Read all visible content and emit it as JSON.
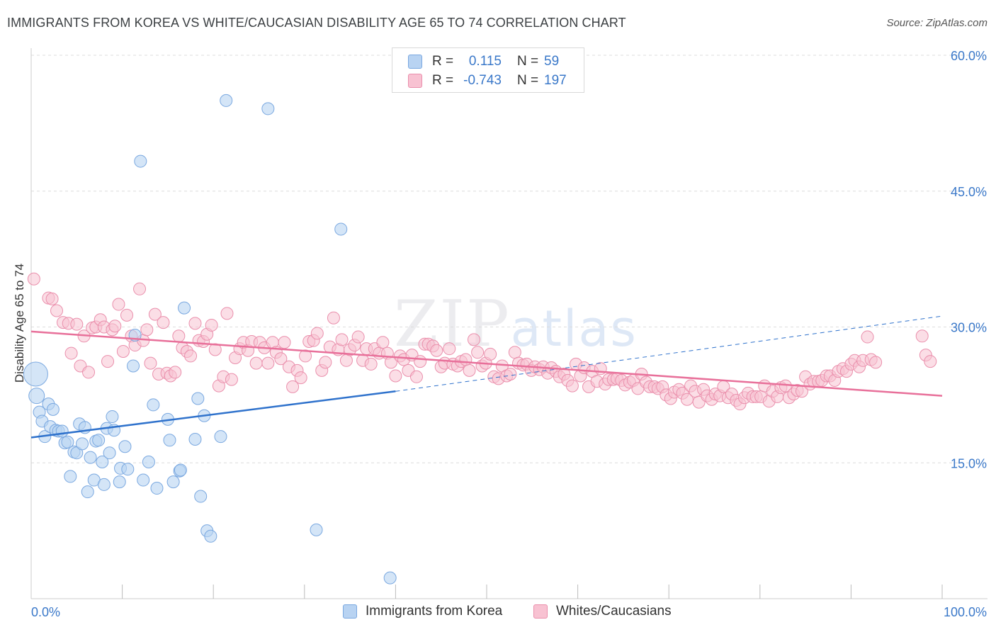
{
  "title": "IMMIGRANTS FROM KOREA VS WHITE/CAUCASIAN DISABILITY AGE 65 TO 74 CORRELATION CHART",
  "source": "Source: ZipAtlas.com",
  "watermark": {
    "zip": "ZIP",
    "atlas": "atlas"
  },
  "legend": {
    "r_label": "R =",
    "n_label": "N =",
    "rows": [
      {
        "r": "0.115",
        "n": "59",
        "color": "#a9c8ee"
      },
      {
        "r": "-0.743",
        "n": "197",
        "color": "#f6b8cb"
      }
    ]
  },
  "bottom_legend": [
    "Immigrants from Korea",
    "Whites/Caucasians"
  ],
  "colors": {
    "korea_fill": "#b8d3f2",
    "korea_stroke": "#7aa8e0",
    "korea_line": "#2f72cc",
    "white_fill": "#f8c2d2",
    "white_stroke": "#ea8fac",
    "white_line": "#e8709a",
    "tick": "#3a78c9",
    "grid": "#dcdcdc"
  },
  "chart_data": {
    "type": "scatter",
    "title": "IMMIGRANTS FROM KOREA VS WHITE/CAUCASIAN DISABILITY AGE 65 TO 74 CORRELATION CHART",
    "xlabel": "",
    "ylabel": "Disability Age 65 to 74",
    "xlim": [
      0,
      100
    ],
    "ylim": [
      0,
      60
    ],
    "x_tick_labels": [
      "0.0%",
      "100.0%"
    ],
    "y_ticks": [
      15,
      30,
      45,
      60
    ],
    "y_tick_labels": [
      "15.0%",
      "30.0%",
      "45.0%",
      "60.0%"
    ],
    "grid": true,
    "legend_placement": "top-center",
    "series": [
      {
        "name": "Immigrants from Korea",
        "r": 0.115,
        "n": 59,
        "trend": {
          "x0": 0,
          "y0": 17.8,
          "x1": 40,
          "y1": 22.9,
          "dashed_to_x": 100,
          "dashed_to_y": 31.2
        },
        "points": [
          [
            0.5,
            24.8
          ],
          [
            0.6,
            22.4
          ],
          [
            0.9,
            20.6
          ],
          [
            1.2,
            19.6
          ],
          [
            1.5,
            17.9
          ],
          [
            1.9,
            21.5
          ],
          [
            2.1,
            19.0
          ],
          [
            2.4,
            20.9
          ],
          [
            2.7,
            18.6
          ],
          [
            3.0,
            18.5
          ],
          [
            3.4,
            18.5
          ],
          [
            3.7,
            17.2
          ],
          [
            4.0,
            17.3
          ],
          [
            4.3,
            13.5
          ],
          [
            4.7,
            16.2
          ],
          [
            5.0,
            16.1
          ],
          [
            5.3,
            19.3
          ],
          [
            5.6,
            17.1
          ],
          [
            5.9,
            18.9
          ],
          [
            6.2,
            11.8
          ],
          [
            6.5,
            15.6
          ],
          [
            6.9,
            13.1
          ],
          [
            7.1,
            17.4
          ],
          [
            7.4,
            17.5
          ],
          [
            7.8,
            15.1
          ],
          [
            8.0,
            12.6
          ],
          [
            8.3,
            18.8
          ],
          [
            8.6,
            16.1
          ],
          [
            8.9,
            20.1
          ],
          [
            9.1,
            18.6
          ],
          [
            9.7,
            12.9
          ],
          [
            9.8,
            14.4
          ],
          [
            10.3,
            16.8
          ],
          [
            10.6,
            14.3
          ],
          [
            11.2,
            25.7
          ],
          [
            11.4,
            29.1
          ],
          [
            12.0,
            48.3
          ],
          [
            12.3,
            13.1
          ],
          [
            12.9,
            15.1
          ],
          [
            13.4,
            21.4
          ],
          [
            13.8,
            12.2
          ],
          [
            15.0,
            19.8
          ],
          [
            15.2,
            17.5
          ],
          [
            15.6,
            12.9
          ],
          [
            16.3,
            14.1
          ],
          [
            16.4,
            14.2
          ],
          [
            16.8,
            32.1
          ],
          [
            18.0,
            17.6
          ],
          [
            18.3,
            22.1
          ],
          [
            18.6,
            11.3
          ],
          [
            19.0,
            20.2
          ],
          [
            19.3,
            7.5
          ],
          [
            19.7,
            6.9
          ],
          [
            20.8,
            17.9
          ],
          [
            21.4,
            55.0
          ],
          [
            26.0,
            54.1
          ],
          [
            31.3,
            7.6
          ],
          [
            34.0,
            40.8
          ],
          [
            39.4,
            2.3
          ]
        ]
      },
      {
        "name": "Whites/Caucasians",
        "r": -0.743,
        "n": 197,
        "trend": {
          "x0": 0,
          "y0": 29.5,
          "x1": 100,
          "y1": 22.4
        },
        "points": [
          [
            0.3,
            35.3
          ],
          [
            1.9,
            33.2
          ],
          [
            2.3,
            33.1
          ],
          [
            2.8,
            31.8
          ],
          [
            3.5,
            30.5
          ],
          [
            4.1,
            30.4
          ],
          [
            4.4,
            27.1
          ],
          [
            5.0,
            30.3
          ],
          [
            5.4,
            25.7
          ],
          [
            5.8,
            29.0
          ],
          [
            6.3,
            25.0
          ],
          [
            6.7,
            29.9
          ],
          [
            7.1,
            30.0
          ],
          [
            7.6,
            30.8
          ],
          [
            8.0,
            30.0
          ],
          [
            8.4,
            26.2
          ],
          [
            8.9,
            29.7
          ],
          [
            9.2,
            30.1
          ],
          [
            9.6,
            32.5
          ],
          [
            10.1,
            27.3
          ],
          [
            10.5,
            31.3
          ],
          [
            11.0,
            29.0
          ],
          [
            11.4,
            28.0
          ],
          [
            11.9,
            34.2
          ],
          [
            12.3,
            28.5
          ],
          [
            12.7,
            29.7
          ],
          [
            13.1,
            26.0
          ],
          [
            13.6,
            31.4
          ],
          [
            14.0,
            24.8
          ],
          [
            14.5,
            30.5
          ],
          [
            14.9,
            24.9
          ],
          [
            15.3,
            24.6
          ],
          [
            15.8,
            25.0
          ],
          [
            16.2,
            29.0
          ],
          [
            16.6,
            27.7
          ],
          [
            17.1,
            27.3
          ],
          [
            17.5,
            26.8
          ],
          [
            18.0,
            30.4
          ],
          [
            18.4,
            28.5
          ],
          [
            18.9,
            28.4
          ],
          [
            19.3,
            29.2
          ],
          [
            19.8,
            30.2
          ],
          [
            20.2,
            27.5
          ],
          [
            20.6,
            23.5
          ],
          [
            21.1,
            24.5
          ],
          [
            21.5,
            31.5
          ],
          [
            22.0,
            24.2
          ],
          [
            22.4,
            26.6
          ],
          [
            22.9,
            27.6
          ],
          [
            23.3,
            28.3
          ],
          [
            23.8,
            27.4
          ],
          [
            24.2,
            28.4
          ],
          [
            24.7,
            26.0
          ],
          [
            25.1,
            28.3
          ],
          [
            25.6,
            27.7
          ],
          [
            26.0,
            26.0
          ],
          [
            26.5,
            28.3
          ],
          [
            26.9,
            27.2
          ],
          [
            27.4,
            26.5
          ],
          [
            27.8,
            28.3
          ],
          [
            28.3,
            25.6
          ],
          [
            28.7,
            23.4
          ],
          [
            29.2,
            25.2
          ],
          [
            29.6,
            24.4
          ],
          [
            30.1,
            26.8
          ],
          [
            30.5,
            28.4
          ],
          [
            31.0,
            28.5
          ],
          [
            31.4,
            29.3
          ],
          [
            31.9,
            25.2
          ],
          [
            32.3,
            26.1
          ],
          [
            32.8,
            27.8
          ],
          [
            33.2,
            31.0
          ],
          [
            33.7,
            27.5
          ],
          [
            34.1,
            28.6
          ],
          [
            34.6,
            26.3
          ],
          [
            35.0,
            27.5
          ],
          [
            35.5,
            28.0
          ],
          [
            35.9,
            28.9
          ],
          [
            36.4,
            26.3
          ],
          [
            36.8,
            27.6
          ],
          [
            37.3,
            25.9
          ],
          [
            37.7,
            27.6
          ],
          [
            38.2,
            27.1
          ],
          [
            38.6,
            28.3
          ],
          [
            39.1,
            27.1
          ],
          [
            39.5,
            26.1
          ],
          [
            40.0,
            24.6
          ],
          [
            40.5,
            26.8
          ],
          [
            40.9,
            26.4
          ],
          [
            41.4,
            25.2
          ],
          [
            41.8,
            26.9
          ],
          [
            42.3,
            24.5
          ],
          [
            42.7,
            26.2
          ],
          [
            43.2,
            28.1
          ],
          [
            43.6,
            28.1
          ],
          [
            44.1,
            27.9
          ],
          [
            44.5,
            27.4
          ],
          [
            45.0,
            25.6
          ],
          [
            45.4,
            26.0
          ],
          [
            45.9,
            27.6
          ],
          [
            46.3,
            25.9
          ],
          [
            46.8,
            25.7
          ],
          [
            47.2,
            26.2
          ],
          [
            47.7,
            26.4
          ],
          [
            48.1,
            25.2
          ],
          [
            48.6,
            28.6
          ],
          [
            49.0,
            27.2
          ],
          [
            49.5,
            25.7
          ],
          [
            49.9,
            26.0
          ],
          [
            50.4,
            27.0
          ],
          [
            50.8,
            24.5
          ],
          [
            51.3,
            24.3
          ],
          [
            51.7,
            25.7
          ],
          [
            52.2,
            24.6
          ],
          [
            52.6,
            24.8
          ],
          [
            53.1,
            27.2
          ],
          [
            53.5,
            26.0
          ],
          [
            54.0,
            25.8
          ],
          [
            54.4,
            25.9
          ],
          [
            54.9,
            25.2
          ],
          [
            55.3,
            25.6
          ],
          [
            55.8,
            25.3
          ],
          [
            56.2,
            25.6
          ],
          [
            56.7,
            24.9
          ],
          [
            57.1,
            25.5
          ],
          [
            57.6,
            25.1
          ],
          [
            58.0,
            24.5
          ],
          [
            58.5,
            24.8
          ],
          [
            58.9,
            24.1
          ],
          [
            59.4,
            23.5
          ],
          [
            59.8,
            25.9
          ],
          [
            60.3,
            24.6
          ],
          [
            60.7,
            25.5
          ],
          [
            61.2,
            23.4
          ],
          [
            61.6,
            25.1
          ],
          [
            62.1,
            24.0
          ],
          [
            62.5,
            25.4
          ],
          [
            63.0,
            23.7
          ],
          [
            63.4,
            24.2
          ],
          [
            63.9,
            24.2
          ],
          [
            64.3,
            24.3
          ],
          [
            64.8,
            24.1
          ],
          [
            65.2,
            23.6
          ],
          [
            65.7,
            23.9
          ],
          [
            66.1,
            24.1
          ],
          [
            66.6,
            23.2
          ],
          [
            67.0,
            24.8
          ],
          [
            67.5,
            23.9
          ],
          [
            67.9,
            23.4
          ],
          [
            68.4,
            23.4
          ],
          [
            68.8,
            23.2
          ],
          [
            69.3,
            23.4
          ],
          [
            69.7,
            22.5
          ],
          [
            70.2,
            22.1
          ],
          [
            70.6,
            22.8
          ],
          [
            71.1,
            23.1
          ],
          [
            71.5,
            22.7
          ],
          [
            72.0,
            22.0
          ],
          [
            72.4,
            23.5
          ],
          [
            72.9,
            22.9
          ],
          [
            73.3,
            21.7
          ],
          [
            73.8,
            23.1
          ],
          [
            74.2,
            22.4
          ],
          [
            74.7,
            22.0
          ],
          [
            75.1,
            22.6
          ],
          [
            75.6,
            22.4
          ],
          [
            76.0,
            23.4
          ],
          [
            76.5,
            22.2
          ],
          [
            76.9,
            22.6
          ],
          [
            77.4,
            21.9
          ],
          [
            77.8,
            21.5
          ],
          [
            78.3,
            22.2
          ],
          [
            78.7,
            22.7
          ],
          [
            79.2,
            22.3
          ],
          [
            79.6,
            22.3
          ],
          [
            80.1,
            22.3
          ],
          [
            80.5,
            23.5
          ],
          [
            81.0,
            21.8
          ],
          [
            81.4,
            22.9
          ],
          [
            81.9,
            22.3
          ],
          [
            82.3,
            23.3
          ],
          [
            82.8,
            23.5
          ],
          [
            83.2,
            22.2
          ],
          [
            83.7,
            22.6
          ],
          [
            84.1,
            23.0
          ],
          [
            84.6,
            22.9
          ],
          [
            85.0,
            24.5
          ],
          [
            85.5,
            23.7
          ],
          [
            85.9,
            24.0
          ],
          [
            86.4,
            24.0
          ],
          [
            86.8,
            24.1
          ],
          [
            87.3,
            24.6
          ],
          [
            87.7,
            24.6
          ],
          [
            88.2,
            24.1
          ],
          [
            88.6,
            25.1
          ],
          [
            89.1,
            25.4
          ],
          [
            89.5,
            25.1
          ],
          [
            90.0,
            25.9
          ],
          [
            90.4,
            26.3
          ],
          [
            90.9,
            25.6
          ],
          [
            91.3,
            26.3
          ],
          [
            91.8,
            28.9
          ],
          [
            92.2,
            26.4
          ],
          [
            92.7,
            26.1
          ],
          [
            97.8,
            29.0
          ],
          [
            98.2,
            26.9
          ],
          [
            98.7,
            26.2
          ]
        ]
      }
    ]
  }
}
